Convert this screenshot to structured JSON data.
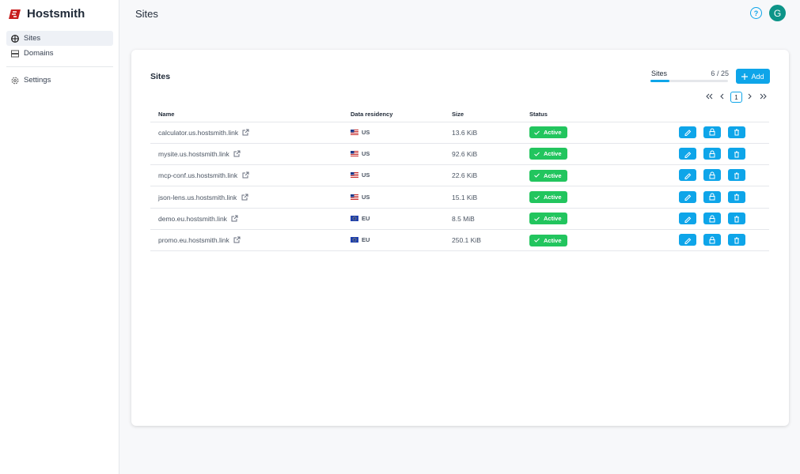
{
  "sidebar": {
    "brand": "Hostsmith",
    "nav": [
      "Sites",
      "Domains",
      "Settings"
    ]
  },
  "header": {
    "title": "Sites",
    "help": "?",
    "avatar": "G"
  },
  "card": {
    "title": "Sites",
    "quota": {
      "label": "Sites",
      "used": 6,
      "separator": "/",
      "limit": 25
    },
    "add": "Add",
    "page": 1
  },
  "table": {
    "columns": [
      "Name",
      "Data residency",
      "Size",
      "Status"
    ],
    "rows": [
      [
        "calculator.us.hostsmith.link",
        "US",
        "13.6 KiB",
        "Active"
      ],
      [
        "mysite.us.hostsmith.link",
        "US",
        "92.6 KiB",
        "Active"
      ],
      [
        "mcp-conf.us.hostsmith.link",
        "US",
        "22.6 KiB",
        "Active"
      ],
      [
        "json-lens.us.hostsmith.link",
        "US",
        "15.1 KiB",
        "Active"
      ],
      [
        "demo.eu.hostsmith.link",
        "EU",
        "8.5 MiB",
        "Active"
      ],
      [
        "promo.eu.hostsmith.link",
        "EU",
        "250.1 KiB",
        "Active"
      ]
    ]
  }
}
